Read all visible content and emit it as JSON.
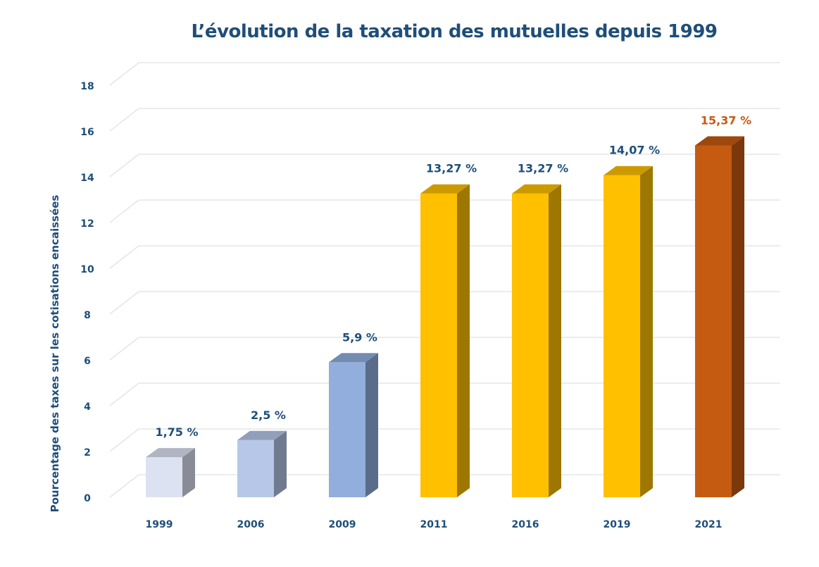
{
  "chart_data": {
    "type": "bar",
    "title": "L’évolution de la taxation des mutuelles depuis 1999",
    "xlabel": "",
    "ylabel": "Pourcentage des taxes sur les cotisations encaissées",
    "categories": [
      "1999",
      "2006",
      "2009",
      "2011",
      "2016",
      "2019",
      "2021"
    ],
    "values": [
      1.75,
      2.5,
      5.9,
      13.27,
      13.27,
      14.07,
      15.37
    ],
    "data_labels": [
      "1,75 %",
      "2,5 %",
      "5,9 %",
      "13,27 %",
      "13,27 %",
      "14,07 %",
      "15,37 %"
    ],
    "y_ticks": [
      "0",
      "2",
      "4",
      "6",
      "8",
      "10",
      "12",
      "14",
      "16",
      "18"
    ],
    "ylim": [
      0,
      18
    ],
    "grid": true,
    "style": "3d-column",
    "bar_colors": [
      "#dde2f2",
      "#b7c7e8",
      "#91aedd",
      "#ffc000",
      "#ffc000",
      "#ffc000",
      "#c55a11"
    ],
    "label_colors": [
      "#1f4e79",
      "#1f4e79",
      "#1f4e79",
      "#1f4e79",
      "#1f4e79",
      "#1f4e79",
      "#c55a11"
    ]
  }
}
